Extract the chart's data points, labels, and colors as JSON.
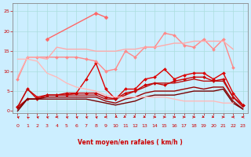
{
  "bg_color": "#cceeff",
  "grid_color": "#aadddd",
  "xlabel": "Vent moyen/en rafales ( km/h )",
  "xlabel_color": "#cc0000",
  "tick_color": "#cc0000",
  "axis_color": "#888888",
  "x_ticks": [
    0,
    1,
    2,
    3,
    4,
    5,
    6,
    7,
    8,
    9,
    10,
    11,
    12,
    13,
    14,
    15,
    16,
    17,
    18,
    19,
    20,
    21,
    22,
    23
  ],
  "y_ticks": [
    0,
    5,
    10,
    15,
    20,
    25
  ],
  "ylim": [
    -0.5,
    27
  ],
  "xlim": [
    -0.5,
    23.5
  ],
  "series": [
    {
      "x": [
        0,
        1,
        2,
        3,
        4,
        5,
        6,
        7,
        8,
        9,
        10,
        11,
        12,
        13,
        14,
        15,
        16,
        17,
        18,
        19,
        20,
        21,
        22,
        23
      ],
      "y": [
        1.0,
        5.5,
        3.5,
        4.0,
        4.0,
        4.0,
        4.5,
        8.0,
        12.0,
        5.5,
        3.0,
        5.5,
        5.5,
        8.0,
        8.5,
        10.5,
        8.0,
        9.0,
        9.5,
        9.5,
        8.0,
        9.5,
        4.5,
        1.5
      ],
      "color": "#dd0000",
      "lw": 1.0,
      "marker": "D",
      "ms": 2.0
    },
    {
      "x": [
        0,
        1,
        2,
        3,
        4,
        5,
        6,
        7,
        8,
        9,
        10,
        11,
        12,
        13,
        14,
        15,
        16,
        17,
        18,
        19,
        20,
        21,
        22,
        23
      ],
      "y": [
        1.0,
        3.0,
        3.0,
        4.0,
        4.0,
        4.5,
        4.5,
        4.5,
        4.5,
        3.5,
        3.0,
        4.5,
        5.0,
        6.5,
        7.0,
        6.5,
        7.5,
        8.0,
        8.5,
        8.5,
        7.5,
        8.0,
        3.5,
        1.5
      ],
      "color": "#cc0000",
      "lw": 1.0,
      "marker": "D",
      "ms": 2.0
    },
    {
      "x": [
        0,
        1,
        2,
        3,
        4,
        5,
        6,
        7,
        8,
        9,
        10,
        11,
        12,
        13,
        14,
        15,
        16,
        17,
        18,
        19,
        20,
        21,
        22,
        23
      ],
      "y": [
        1.0,
        5.5,
        3.0,
        4.0,
        4.0,
        4.0,
        4.0,
        4.0,
        4.0,
        3.0,
        3.0,
        4.0,
        5.0,
        6.0,
        7.0,
        7.0,
        7.0,
        7.5,
        8.0,
        7.5,
        7.5,
        7.5,
        3.5,
        1.0
      ],
      "color": "#bb1111",
      "lw": 1.0,
      "marker": null,
      "ms": 0
    },
    {
      "x": [
        0,
        1,
        2,
        3,
        4,
        5,
        6,
        7,
        8,
        9,
        10,
        11,
        12,
        13,
        14,
        15,
        16,
        17,
        18,
        19,
        20,
        21,
        22,
        23
      ],
      "y": [
        0.5,
        3.0,
        3.0,
        3.5,
        3.5,
        3.5,
        3.5,
        3.5,
        3.5,
        2.5,
        2.0,
        3.0,
        3.5,
        4.5,
        5.0,
        5.0,
        5.0,
        5.5,
        6.0,
        5.5,
        6.0,
        6.0,
        2.5,
        0.5
      ],
      "color": "#990000",
      "lw": 1.0,
      "marker": null,
      "ms": 0
    },
    {
      "x": [
        0,
        1,
        2,
        3,
        4,
        5,
        6,
        7,
        8,
        9,
        10,
        11,
        12,
        13,
        14,
        15,
        16,
        17,
        18,
        19,
        20,
        21,
        22,
        23
      ],
      "y": [
        0.0,
        3.0,
        3.0,
        3.0,
        3.0,
        3.0,
        3.0,
        3.0,
        2.5,
        2.0,
        1.5,
        2.0,
        2.5,
        3.5,
        4.0,
        4.0,
        4.0,
        4.5,
        5.0,
        5.0,
        5.0,
        5.5,
        2.0,
        0.5
      ],
      "color": "#770000",
      "lw": 1.0,
      "marker": null,
      "ms": 0
    },
    {
      "x": [
        0,
        1,
        2,
        3,
        4,
        5,
        6,
        7,
        8,
        9,
        10,
        11,
        12,
        13,
        14,
        15,
        16,
        17,
        18,
        19,
        20,
        21,
        22,
        23
      ],
      "y": [
        8.0,
        13.5,
        13.5,
        13.5,
        13.5,
        13.5,
        13.5,
        13.0,
        12.5,
        10.0,
        10.5,
        15.0,
        13.5,
        16.0,
        16.0,
        19.5,
        19.0,
        16.5,
        16.0,
        18.0,
        15.5,
        18.0,
        11.0,
        null
      ],
      "color": "#ff8888",
      "lw": 1.0,
      "marker": "D",
      "ms": 2.0
    },
    {
      "x": [
        0,
        1,
        2,
        3,
        4,
        5,
        6,
        7,
        8,
        9,
        10,
        11,
        12,
        13,
        14,
        15,
        16,
        17,
        18,
        19,
        20,
        21,
        22,
        23
      ],
      "y": [
        8.5,
        13.5,
        13.5,
        13.0,
        16.0,
        15.5,
        15.5,
        15.5,
        15.0,
        15.0,
        15.0,
        15.5,
        15.5,
        16.0,
        16.0,
        16.5,
        17.0,
        17.0,
        17.5,
        17.5,
        17.5,
        17.5,
        15.5,
        null
      ],
      "color": "#ffaaaa",
      "lw": 1.0,
      "marker": null,
      "ms": 0
    },
    {
      "x": [
        0,
        1,
        2,
        3,
        4,
        5,
        6,
        7,
        8,
        9,
        10,
        11,
        12,
        13,
        14,
        15,
        16,
        17,
        18,
        19,
        20,
        21,
        22,
        23
      ],
      "y": [
        13.0,
        13.0,
        12.5,
        9.5,
        8.5,
        7.0,
        6.0,
        5.5,
        5.0,
        4.0,
        3.5,
        3.5,
        3.5,
        3.5,
        3.5,
        3.5,
        3.0,
        2.5,
        2.5,
        2.5,
        2.5,
        2.0,
        2.0,
        null
      ],
      "color": "#ffbbbb",
      "lw": 1.0,
      "marker": null,
      "ms": 0
    },
    {
      "x": [
        3,
        8,
        9
      ],
      "y": [
        18.0,
        24.5,
        23.5
      ],
      "color": "#ff6666",
      "lw": 1.0,
      "marker": "D",
      "ms": 2.5
    }
  ],
  "arrow_symbols": [
    225,
    210,
    225,
    225,
    270,
    225,
    225,
    225,
    225,
    270,
    315,
    45,
    45,
    60,
    90,
    90,
    90,
    90,
    90,
    60,
    60,
    90,
    270,
    270
  ]
}
